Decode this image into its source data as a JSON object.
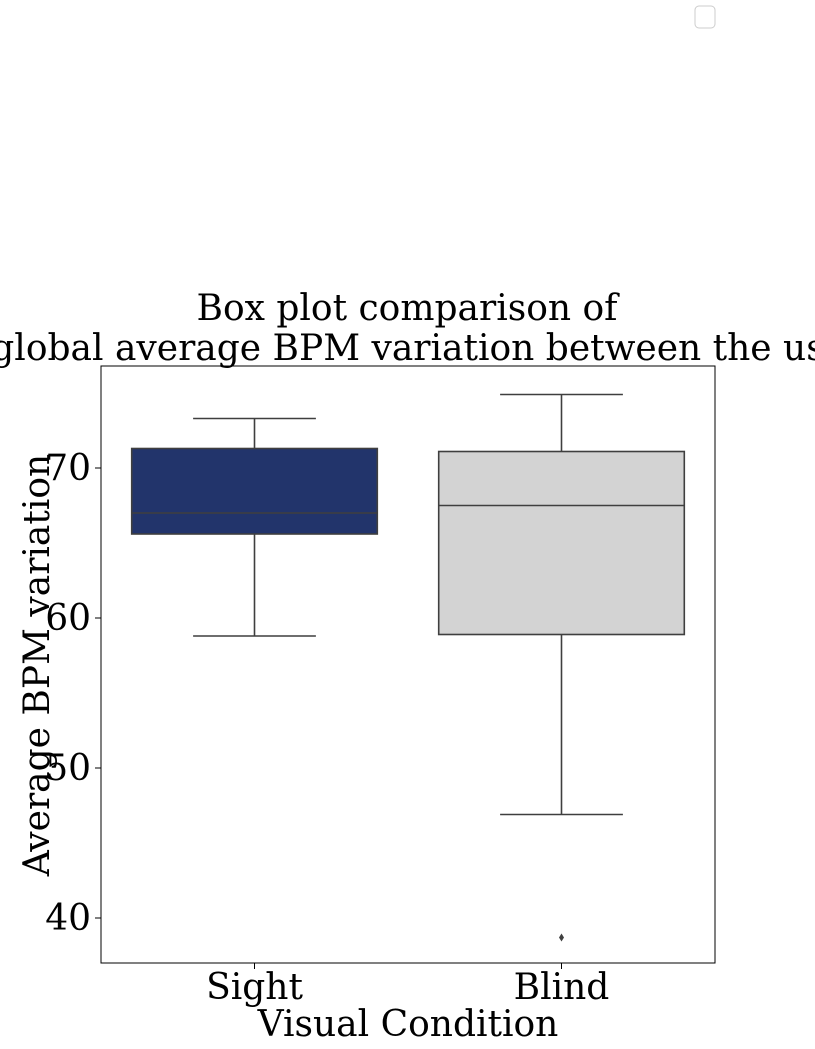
{
  "chart_data": {
    "type": "box",
    "title_lines": [
      "Box plot comparison of",
      "the global average BPM variation between the users."
    ],
    "xlabel": "Visual Condition",
    "ylabel": "Average BPM variation",
    "ylim": [
      37,
      76.8
    ],
    "yticks": [
      40,
      50,
      60,
      70
    ],
    "categories": [
      "Sight",
      "Blind"
    ],
    "boxes": [
      {
        "category": "Sight",
        "whisker_low": 58.8,
        "q1": 65.6,
        "median": 67.0,
        "q3": 71.3,
        "whisker_high": 73.3,
        "outliers": [],
        "color": "#22346b"
      },
      {
        "category": "Blind",
        "whisker_low": 46.9,
        "q1": 58.9,
        "median": 67.5,
        "q3": 71.1,
        "whisker_high": 74.9,
        "outliers": [
          38.7
        ],
        "color": "#d3d3d3"
      }
    ],
    "line_color": "#3f3f3f",
    "grid": false,
    "legend": {
      "entries": [],
      "placement": "top-right"
    }
  }
}
